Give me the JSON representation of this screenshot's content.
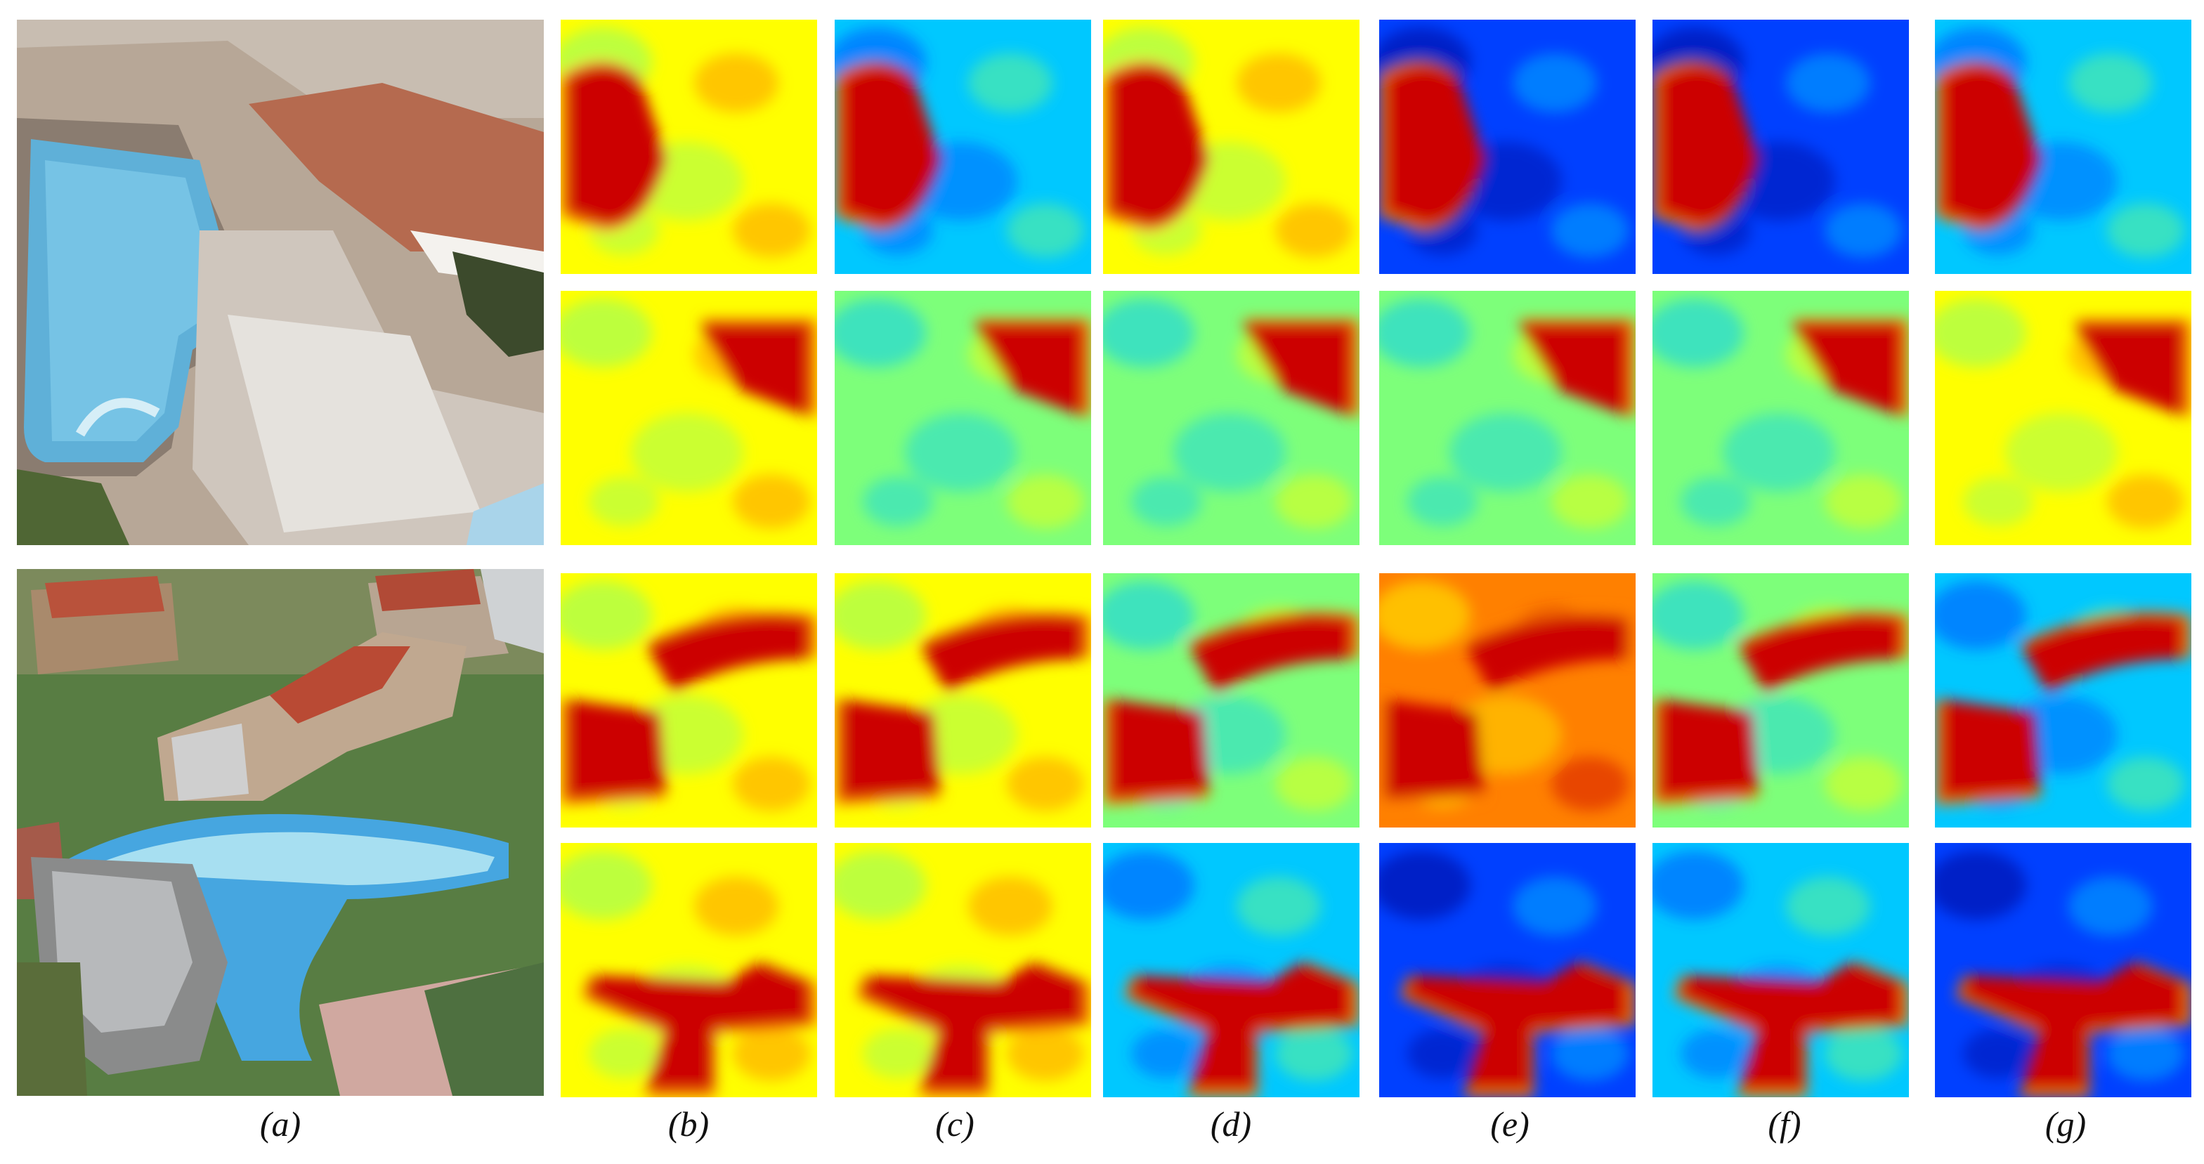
{
  "figure": {
    "column_labels": [
      "(a)",
      "(b)",
      "(c)",
      "(d)",
      "(e)",
      "(f)",
      "(g)"
    ],
    "samples": [
      {
        "photo": "aerial-pool-resort-scene",
        "heatmap_rows": [
          [
            "heatmap-b1",
            "heatmap-c1",
            "heatmap-d1",
            "heatmap-e1",
            "heatmap-f1",
            "heatmap-g1"
          ],
          [
            "heatmap-b2",
            "heatmap-c2",
            "heatmap-d2",
            "heatmap-e2",
            "heatmap-f2",
            "heatmap-g2"
          ]
        ]
      },
      {
        "photo": "aerial-resort-pool-villas-scene",
        "heatmap_rows": [
          [
            "heatmap-b3",
            "heatmap-c3",
            "heatmap-d3",
            "heatmap-e3",
            "heatmap-f3",
            "heatmap-g3"
          ],
          [
            "heatmap-b4",
            "heatmap-c4",
            "heatmap-d4",
            "heatmap-e4",
            "heatmap-f4",
            "heatmap-g4"
          ]
        ]
      }
    ],
    "colormap": [
      "#00008f",
      "#0040ff",
      "#00c8ff",
      "#7dff7a",
      "#ffff00",
      "#ff8000",
      "#cc0000",
      "#800000"
    ]
  }
}
